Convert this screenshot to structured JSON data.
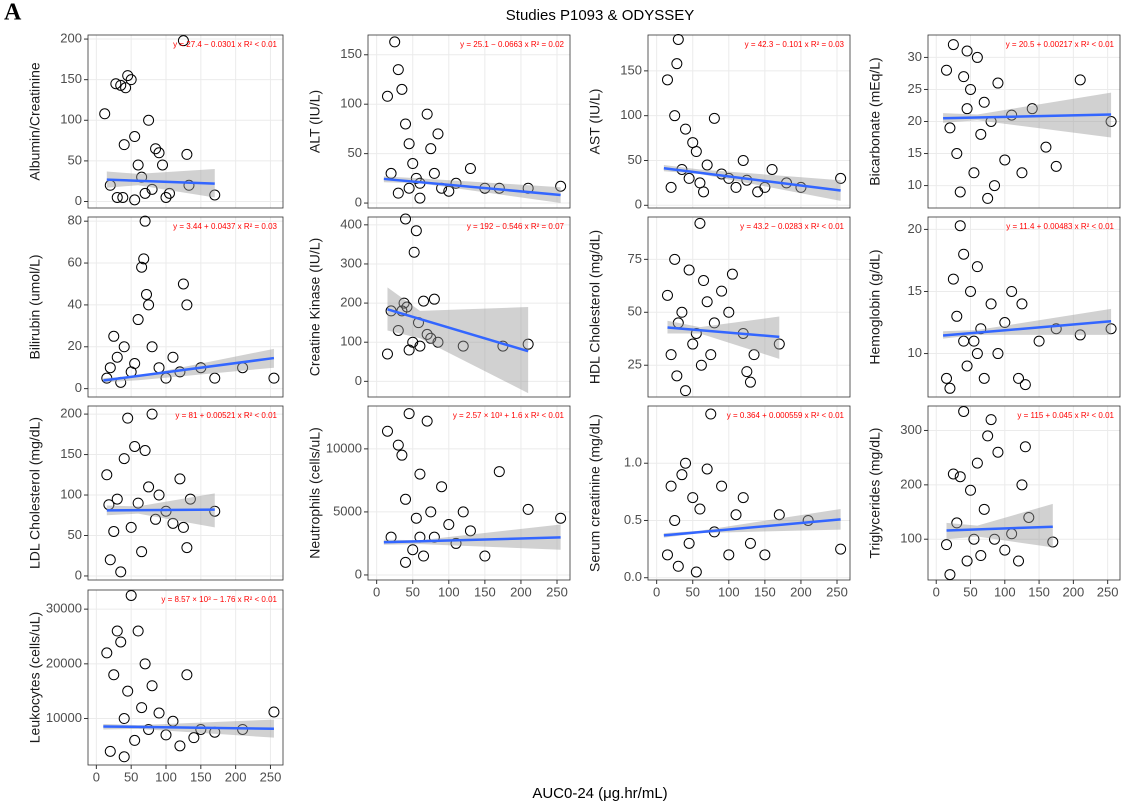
{
  "figure": {
    "title": "Studies P1093 & ODYSSEY",
    "panel_label": "A",
    "xlabel": "AUC0-24 (μg.hr/mL)",
    "xlim": [
      -12,
      268
    ],
    "xticks": [
      0,
      50,
      100,
      150,
      200,
      250
    ]
  },
  "chart_data": [
    {
      "type": "scatter",
      "ylabel": "Albumin/Creatinine",
      "annotation": "y = 27.4 − 0.0301 x   R² < 0.01",
      "ylim": [
        -8,
        205
      ],
      "yticks": [
        0,
        50,
        100,
        150,
        200
      ],
      "grid": true,
      "color": "#000000",
      "x": [
        12,
        20,
        28,
        35,
        38,
        42,
        45,
        50,
        55,
        60,
        65,
        70,
        75,
        85,
        90,
        95,
        105,
        125,
        130,
        133,
        170,
        40,
        30,
        55,
        80,
        100
      ],
      "values": [
        108,
        20,
        145,
        143,
        5,
        140,
        155,
        150,
        80,
        45,
        30,
        10,
        100,
        65,
        60,
        45,
        10,
        198,
        58,
        20,
        8,
        70,
        5,
        2,
        15,
        5
      ],
      "fit": {
        "x": [
          15,
          170
        ],
        "values": [
          27,
          22
        ],
        "color": "#3366ff"
      },
      "band": {
        "x": [
          15,
          60,
          170
        ],
        "lower": [
          17,
          20,
          5
        ],
        "upper": [
          37,
          34,
          40
        ],
        "color": "#999999"
      }
    },
    {
      "type": "scatter",
      "ylabel": "ALT (IU/L)",
      "annotation": "y = 25.1 − 0.0663 x   R² = 0.02",
      "ylim": [
        -5,
        170
      ],
      "yticks": [
        0,
        50,
        100,
        150
      ],
      "grid": true,
      "color": "#000000",
      "x": [
        15,
        25,
        30,
        35,
        20,
        40,
        45,
        50,
        55,
        60,
        70,
        75,
        80,
        90,
        100,
        110,
        130,
        150,
        170,
        210,
        255,
        30,
        60,
        85,
        45
      ],
      "values": [
        108,
        163,
        135,
        115,
        30,
        80,
        60,
        40,
        25,
        20,
        90,
        55,
        30,
        15,
        12,
        20,
        35,
        15,
        15,
        15,
        17,
        10,
        5,
        70,
        15
      ],
      "fit": {
        "x": [
          10,
          255
        ],
        "values": [
          24.4,
          8.2
        ],
        "color": "#3366ff"
      },
      "band": {
        "x": [
          10,
          60,
          255
        ],
        "lower": [
          21,
          20,
          0
        ],
        "upper": [
          27,
          25,
          16
        ],
        "color": "#999999"
      }
    },
    {
      "type": "scatter",
      "ylabel": "AST (IU/L)",
      "annotation": "y = 42.3 − 0.101 x   R² = 0.03",
      "ylim": [
        -3,
        190
      ],
      "yticks": [
        0,
        50,
        100,
        150
      ],
      "grid": true,
      "color": "#000000",
      "x": [
        15,
        30,
        28,
        25,
        40,
        50,
        55,
        35,
        45,
        60,
        80,
        70,
        90,
        100,
        120,
        125,
        150,
        160,
        180,
        200,
        255,
        20,
        65,
        110,
        140
      ],
      "values": [
        140,
        185,
        158,
        100,
        85,
        70,
        60,
        40,
        30,
        25,
        97,
        45,
        35,
        30,
        50,
        28,
        20,
        40,
        25,
        20,
        30,
        20,
        15,
        20,
        15
      ],
      "fit": {
        "x": [
          10,
          255
        ],
        "values": [
          41.3,
          16.5
        ],
        "color": "#3366ff"
      },
      "band": {
        "x": [
          10,
          60,
          255
        ],
        "lower": [
          38,
          35,
          5
        ],
        "upper": [
          45,
          40,
          28
        ],
        "color": "#999999"
      }
    },
    {
      "type": "scatter",
      "ylabel": "Bicarbonate (mEq/L)",
      "annotation": "y = 20.5 + 0.00217 x   R² < 0.01",
      "ylim": [
        6.5,
        33.5
      ],
      "yticks": [
        10,
        15,
        20,
        25,
        30
      ],
      "grid": true,
      "color": "#000000",
      "x": [
        15,
        20,
        25,
        30,
        35,
        40,
        45,
        50,
        55,
        60,
        65,
        70,
        75,
        80,
        90,
        100,
        110,
        125,
        140,
        160,
        175,
        210,
        255,
        45,
        85
      ],
      "values": [
        28,
        19,
        32,
        15,
        9,
        27,
        22,
        25,
        12,
        30,
        18,
        23,
        8,
        20,
        26,
        14,
        21,
        12,
        22,
        16,
        13,
        26.5,
        20,
        31,
        10
      ],
      "fit": {
        "x": [
          10,
          255
        ],
        "values": [
          20.5,
          21.1
        ],
        "color": "#3366ff"
      },
      "band": {
        "x": [
          10,
          60,
          255
        ],
        "lower": [
          19.8,
          20.2,
          17.5
        ],
        "upper": [
          21.3,
          21.1,
          24.5
        ],
        "color": "#999999"
      }
    },
    {
      "type": "scatter",
      "ylabel": "Bilirubin (umol/L)",
      "annotation": "y = 3.44 + 0.0437 x   R² = 0.03",
      "ylim": [
        -4,
        82
      ],
      "yticks": [
        0,
        20,
        40,
        60,
        80
      ],
      "grid": true,
      "color": "#000000",
      "x": [
        15,
        20,
        25,
        30,
        35,
        40,
        50,
        55,
        60,
        65,
        68,
        70,
        72,
        75,
        80,
        90,
        100,
        110,
        120,
        125,
        130,
        150,
        170,
        210,
        255
      ],
      "values": [
        5,
        10,
        25,
        15,
        3,
        20,
        8,
        12,
        33,
        58,
        62,
        80,
        45,
        40,
        20,
        10,
        5,
        15,
        8,
        50,
        40,
        10,
        5,
        10,
        5
      ],
      "fit": {
        "x": [
          10,
          255
        ],
        "values": [
          3.9,
          14.6
        ],
        "color": "#3366ff"
      },
      "band": {
        "x": [
          10,
          60,
          255
        ],
        "lower": [
          3,
          4,
          10
        ],
        "upper": [
          5,
          6,
          19
        ],
        "color": "#999999"
      }
    },
    {
      "type": "scatter",
      "ylabel": "Creatine Kinase (IU/L)",
      "annotation": "y = 192 − 0.546 x   R² = 0.07",
      "ylim": [
        -40,
        420
      ],
      "yticks": [
        0,
        100,
        200,
        300,
        400
      ],
      "grid": true,
      "color": "#000000",
      "x": [
        15,
        20,
        30,
        35,
        38,
        40,
        42,
        45,
        50,
        52,
        55,
        58,
        60,
        65,
        70,
        75,
        80,
        85,
        120,
        175,
        210
      ],
      "values": [
        70,
        180,
        130,
        180,
        200,
        415,
        190,
        80,
        100,
        330,
        385,
        150,
        90,
        205,
        120,
        110,
        210,
        100,
        90,
        90,
        95
      ],
      "fit": {
        "x": [
          15,
          210
        ],
        "values": [
          184,
          77
        ],
        "color": "#3366ff"
      },
      "band": {
        "x": [
          15,
          60,
          210
        ],
        "lower": [
          130,
          110,
          -30
        ],
        "upper": [
          240,
          180,
          190
        ],
        "color": "#999999"
      }
    },
    {
      "type": "scatter",
      "ylabel": "HDL Cholesterol (mg/dL)",
      "annotation": "y = 43.2 − 0.0283 x   R² < 0.01",
      "ylim": [
        10,
        95
      ],
      "yticks": [
        25,
        50,
        75
      ],
      "grid": true,
      "color": "#000000",
      "x": [
        15,
        20,
        25,
        28,
        30,
        35,
        40,
        45,
        50,
        55,
        60,
        62,
        65,
        70,
        75,
        80,
        90,
        100,
        105,
        120,
        125,
        130,
        135,
        170
      ],
      "values": [
        58,
        30,
        75,
        20,
        45,
        50,
        13,
        70,
        35,
        40,
        92,
        25,
        65,
        55,
        30,
        45,
        60,
        50,
        68,
        40,
        22,
        17,
        30,
        35
      ],
      "fit": {
        "x": [
          15,
          170
        ],
        "values": [
          42.8,
          38.4
        ],
        "color": "#3366ff"
      },
      "band": {
        "x": [
          15,
          60,
          170
        ],
        "lower": [
          40,
          40,
          28
        ],
        "upper": [
          46,
          43,
          48
        ],
        "color": "#999999"
      }
    },
    {
      "type": "scatter",
      "ylabel": "Hemoglobin (g/dL)",
      "annotation": "y = 11.4 + 0.00483 x   R² < 0.01",
      "ylim": [
        6.5,
        21
      ],
      "yticks": [
        10,
        15,
        20
      ],
      "grid": true,
      "color": "#000000",
      "x": [
        15,
        20,
        25,
        30,
        35,
        40,
        45,
        50,
        55,
        60,
        65,
        70,
        80,
        90,
        100,
        110,
        120,
        125,
        130,
        150,
        175,
        210,
        255,
        40,
        60
      ],
      "values": [
        8,
        7.2,
        16,
        13,
        20.3,
        18,
        9,
        15,
        11,
        17,
        12,
        8,
        14,
        10,
        12.5,
        15,
        8,
        14,
        7.5,
        11,
        12,
        11.5,
        12,
        11,
        10
      ],
      "fit": {
        "x": [
          10,
          255
        ],
        "values": [
          11.45,
          12.6
        ],
        "color": "#3366ff"
      },
      "band": {
        "x": [
          10,
          60,
          255
        ],
        "lower": [
          11.2,
          11.5,
          11.5
        ],
        "upper": [
          11.8,
          11.9,
          13.6
        ],
        "color": "#999999"
      }
    },
    {
      "type": "scatter",
      "ylabel": "LDL Cholesterol (mg/dL)",
      "annotation": "y = 81 + 0.00521 x   R² < 0.01",
      "ylim": [
        -5,
        210
      ],
      "yticks": [
        0,
        50,
        100,
        150,
        200
      ],
      "grid": true,
      "color": "#000000",
      "x": [
        15,
        18,
        20,
        25,
        30,
        35,
        40,
        45,
        50,
        55,
        60,
        65,
        70,
        75,
        80,
        85,
        90,
        100,
        110,
        120,
        125,
        130,
        135,
        170
      ],
      "values": [
        125,
        88,
        20,
        55,
        95,
        5,
        145,
        195,
        60,
        160,
        90,
        30,
        155,
        110,
        200,
        70,
        100,
        80,
        65,
        120,
        60,
        35,
        95,
        80
      ],
      "fit": {
        "x": [
          15,
          170
        ],
        "values": [
          81,
          82
        ],
        "color": "#3366ff"
      },
      "band": {
        "x": [
          15,
          60,
          170
        ],
        "lower": [
          75,
          77,
          60
        ],
        "upper": [
          87,
          86,
          102
        ],
        "color": "#999999"
      }
    },
    {
      "type": "scatter",
      "ylabel": "Neutrophils (cells/uL)",
      "annotation": "y = 2.57 × 10³ + 1.6 x   R² < 0.01",
      "ylim": [
        -400,
        13400
      ],
      "yticks": [
        0,
        5000,
        10000
      ],
      "grid": true,
      "color": "#000000",
      "x": [
        15,
        20,
        30,
        35,
        40,
        45,
        50,
        55,
        60,
        65,
        70,
        75,
        80,
        90,
        100,
        110,
        120,
        130,
        150,
        170,
        210,
        255,
        40,
        60
      ],
      "values": [
        11400,
        3000,
        10300,
        9500,
        6000,
        12800,
        2000,
        4500,
        8000,
        1500,
        12200,
        5000,
        3000,
        7000,
        4000,
        2500,
        5000,
        3500,
        1500,
        8200,
        5200,
        4500,
        1000,
        3000
      ],
      "fit": {
        "x": [
          10,
          255
        ],
        "values": [
          2590,
          2980
        ],
        "color": "#3366ff"
      },
      "band": {
        "x": [
          10,
          60,
          255
        ],
        "lower": [
          2400,
          2450,
          2000
        ],
        "upper": [
          2800,
          2750,
          4000
        ],
        "color": "#999999"
      }
    },
    {
      "type": "scatter",
      "ylabel": "Serum creatinine (mg/dL)",
      "annotation": "y = 0.364 + 0.000559 x   R² < 0.01",
      "ylim": [
        -0.02,
        1.5
      ],
      "yticks": [
        {
          "value": 0,
          "label": "0.0"
        },
        {
          "value": 0.5,
          "label": "0.5"
        },
        {
          "value": 1,
          "label": "1.0"
        }
      ],
      "grid": true,
      "color": "#000000",
      "x": [
        15,
        20,
        25,
        30,
        35,
        40,
        45,
        50,
        55,
        60,
        70,
        75,
        80,
        90,
        100,
        110,
        120,
        130,
        150,
        170,
        210,
        255
      ],
      "values": [
        0.2,
        0.8,
        0.5,
        0.1,
        0.9,
        1.0,
        0.3,
        0.7,
        0.05,
        0.6,
        0.95,
        1.43,
        0.4,
        0.8,
        0.2,
        0.55,
        0.7,
        0.3,
        0.2,
        0.55,
        0.5,
        0.25
      ],
      "fit": {
        "x": [
          10,
          255
        ],
        "values": [
          0.37,
          0.51
        ],
        "color": "#3366ff"
      },
      "band": {
        "x": [
          10,
          60,
          255
        ],
        "lower": [
          0.35,
          0.39,
          0.42
        ],
        "upper": [
          0.39,
          0.41,
          0.6
        ],
        "color": "#999999"
      }
    },
    {
      "type": "scatter",
      "ylabel": "Triglycerides (mg/dL)",
      "annotation": "y = 115 + 0.045 x   R² < 0.01",
      "ylim": [
        25,
        345
      ],
      "yticks": [
        100,
        200,
        300
      ],
      "grid": true,
      "color": "#000000",
      "x": [
        15,
        20,
        25,
        30,
        35,
        40,
        45,
        50,
        55,
        60,
        65,
        70,
        75,
        80,
        85,
        90,
        100,
        110,
        120,
        125,
        130,
        135,
        170
      ],
      "values": [
        90,
        35,
        220,
        130,
        215,
        335,
        60,
        190,
        100,
        240,
        70,
        155,
        290,
        320,
        100,
        260,
        80,
        110,
        60,
        200,
        270,
        140,
        95
      ],
      "fit": {
        "x": [
          15,
          170
        ],
        "values": [
          116,
          123
        ],
        "color": "#3366ff"
      },
      "band": {
        "x": [
          15,
          60,
          170
        ],
        "lower": [
          100,
          105,
          85
        ],
        "upper": [
          130,
          125,
          165
        ],
        "color": "#999999"
      }
    },
    {
      "type": "scatter",
      "ylabel": "Leukocytes (cells/uL)",
      "annotation": "y = 8.57 × 10³ − 1.76 x   R² < 0.01",
      "ylim": [
        1500,
        33500
      ],
      "yticks": [
        10000,
        20000,
        30000
      ],
      "grid": true,
      "color": "#000000",
      "x": [
        15,
        20,
        25,
        30,
        35,
        40,
        45,
        50,
        55,
        60,
        65,
        70,
        75,
        80,
        90,
        100,
        110,
        120,
        130,
        140,
        150,
        170,
        210,
        255,
        40
      ],
      "values": [
        22000,
        4000,
        18000,
        26000,
        24000,
        10000,
        15000,
        32500,
        6000,
        26000,
        12000,
        20000,
        8000,
        16000,
        11000,
        7000,
        9500,
        5000,
        18000,
        6500,
        8000,
        7500,
        8000,
        11200,
        3000
      ],
      "fit": {
        "x": [
          10,
          255
        ],
        "values": [
          8550,
          8120
        ],
        "color": "#3366ff"
      },
      "band": {
        "x": [
          10,
          60,
          255
        ],
        "lower": [
          8000,
          8100,
          6500
        ],
        "upper": [
          9000,
          8800,
          9800
        ],
        "color": "#999999"
      }
    }
  ]
}
